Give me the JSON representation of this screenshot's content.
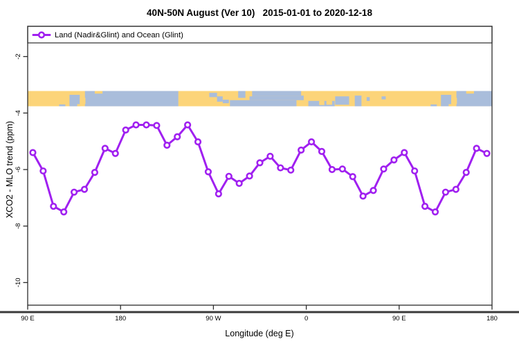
{
  "title": "40N-50N August (Ver 10)   2015-01-01 to 2020-12-18",
  "legend": {
    "label": "Land (Nadir&Glint) and Ocean (Glint)",
    "marker": "open-circle-on-line",
    "box_full_width": true
  },
  "axes": {
    "xlabel": "Longitude (deg E)",
    "ylabel": "XCO2 - MLO trend (ppm)",
    "x_ticks": [
      {
        "lon": 90,
        "label": "90 E"
      },
      {
        "lon": 180,
        "label": "180"
      },
      {
        "lon": 270,
        "label": "90 W"
      },
      {
        "lon": 360,
        "label": "0"
      },
      {
        "lon": 450,
        "label": "90 E"
      },
      {
        "lon": 540,
        "label": "180"
      }
    ],
    "y_ticks": [
      {
        "value": -2,
        "label": "-2"
      },
      {
        "value": -4,
        "label": "-4"
      },
      {
        "value": -6,
        "label": "-6"
      },
      {
        "value": -8,
        "label": "-8"
      },
      {
        "value": -10,
        "label": "-10"
      }
    ]
  },
  "chart_data": {
    "type": "line",
    "title": "40N-50N August (Ver 10)   2015-01-01 to 2020-12-18",
    "xlabel": "Longitude (deg E)",
    "ylabel": "XCO2 - MLO trend (ppm)",
    "xlim": [
      90,
      540
    ],
    "ylim": [
      -10.8,
      -0.93
    ],
    "grid": false,
    "legend_position": "top-left, full-width box inside plot",
    "series": [
      {
        "name": "Land (Nadir&Glint) and Ocean (Glint)",
        "line_color": "#A020F0",
        "marker": "open-circle",
        "marker_fill": "#ffffff",
        "x": [
          95,
          105,
          115,
          125,
          135,
          145,
          155,
          165,
          175,
          185,
          195,
          205,
          215,
          225,
          235,
          245,
          255,
          265,
          275,
          285,
          295,
          305,
          315,
          325,
          335,
          345,
          355,
          365,
          375,
          385,
          395,
          405,
          415,
          425,
          435,
          445,
          455,
          465,
          475,
          485,
          495,
          505,
          515,
          525,
          535
        ],
        "values": [
          -5.4,
          -6.05,
          -7.3,
          -7.5,
          -6.8,
          -6.7,
          -6.1,
          -5.25,
          -5.43,
          -4.6,
          -4.42,
          -4.42,
          -4.44,
          -5.14,
          -4.84,
          -4.42,
          -5.02,
          -6.08,
          -6.86,
          -6.24,
          -6.49,
          -6.23,
          -5.76,
          -5.53,
          -5.94,
          -6.02,
          -5.31,
          -5.02,
          -5.36,
          -6.0,
          -5.98,
          -6.25,
          -6.94,
          -6.74,
          -5.98,
          -5.66,
          -5.4,
          -6.05,
          -7.3,
          -7.5,
          -6.8,
          -6.7,
          -6.1,
          -5.25,
          -5.43
        ]
      }
    ]
  },
  "map_band": {
    "description": "World map strip of the 40N-50N latitude band drawn across the longitude axis",
    "lat_range": [
      40,
      50
    ],
    "top_value": -3.22,
    "bottom_value": -3.76,
    "land_color": "#FCD479",
    "ocean_color": "#A9BDDB",
    "ocean_patches": [
      [
        120.5,
        126.5,
        40,
        41.2
      ],
      [
        130.5,
        140.5,
        40,
        47.5
      ],
      [
        145.5,
        236,
        40,
        50
      ],
      [
        266,
        273.5,
        46,
        48.8
      ],
      [
        273.5,
        279,
        43,
        46.5
      ],
      [
        279,
        285,
        42,
        44.3
      ],
      [
        294,
        301,
        45.5,
        50
      ],
      [
        286,
        350.5,
        40,
        44
      ],
      [
        305,
        357.5,
        44,
        47
      ],
      [
        307,
        355,
        47,
        50
      ],
      [
        362,
        387.5,
        40,
        43.5
      ],
      [
        388,
        401.5,
        41,
        46.5
      ],
      [
        407,
        413.5,
        40,
        47
      ],
      [
        418.5,
        421.5,
        43.5,
        46
      ],
      [
        433,
        437,
        44.5,
        46.5
      ],
      [
        480.5,
        486.5,
        40,
        41.2
      ],
      [
        490.5,
        500.5,
        40,
        47.5
      ],
      [
        505.5,
        540,
        40,
        50
      ]
    ],
    "land_patches": [
      [
        138,
        141.5,
        40,
        41.4
      ],
      [
        140.5,
        146,
        41.5,
        45.5
      ],
      [
        141.8,
        144.6,
        45.8,
        50
      ],
      [
        155,
        162.5,
        48.3,
        50
      ],
      [
        301.5,
        307.5,
        46.5,
        50
      ],
      [
        372.5,
        377.5,
        40.8,
        43.5
      ],
      [
        379.5,
        385,
        41,
        43.5
      ],
      [
        498,
        501.5,
        40,
        41.4
      ],
      [
        500.5,
        506,
        41.5,
        45.5
      ],
      [
        501.8,
        504.6,
        45.8,
        50
      ],
      [
        515,
        522.5,
        48.3,
        50
      ]
    ]
  },
  "style": {
    "box_color": "#2b2b2b",
    "bottom_rule_color": "#3a3a3a",
    "text_color": "#000000"
  }
}
